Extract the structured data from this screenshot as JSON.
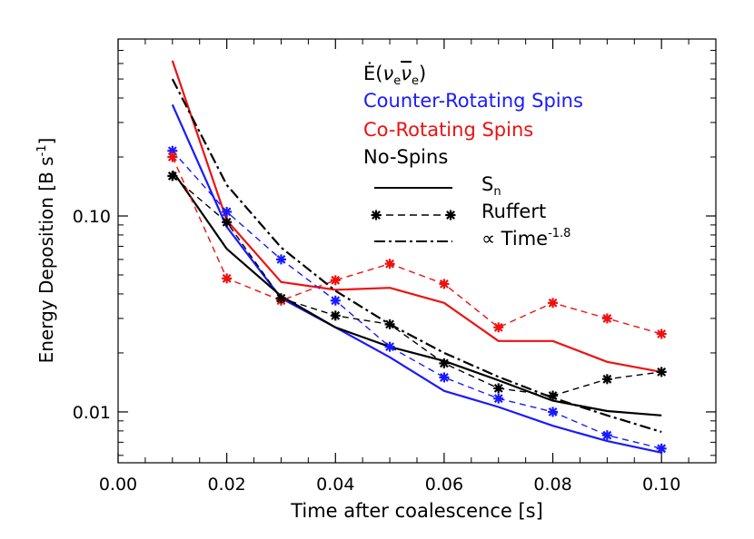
{
  "chart_data": {
    "type": "line",
    "xlabel": "Time after coalescence [s]",
    "ylabel": "Energy Deposition [B s",
    "ylabel_sup": "-1",
    "ylabel_close": "]",
    "yscale": "log",
    "xlim": [
      0.0,
      0.11
    ],
    "ylim": [
      0.0055,
      0.8
    ],
    "x_ticks": [
      {
        "value": 0.0,
        "label": "0.00"
      },
      {
        "value": 0.02,
        "label": "0.02"
      },
      {
        "value": 0.04,
        "label": "0.04"
      },
      {
        "value": 0.06,
        "label": "0.06"
      },
      {
        "value": 0.08,
        "label": "0.08"
      },
      {
        "value": 0.1,
        "label": "0.10"
      }
    ],
    "y_ticks": [
      {
        "value": 0.01,
        "label": "0.01"
      },
      {
        "value": 0.1,
        "label": "0.10"
      }
    ],
    "legend": {
      "header_prefix": "Ė(",
      "nu": "ν",
      "sub_e": "e",
      "nubar": "ν",
      "header_suffix": ")",
      "spin_entries": [
        {
          "label": "Counter-Rotating Spins",
          "color": "#1a1aff"
        },
        {
          "label": "Co-Rotating Spins",
          "color": "#ee1111"
        },
        {
          "label": "No-Spins",
          "color": "#000000"
        }
      ],
      "style_entries": [
        {
          "style": "solid",
          "label": "S",
          "sub": "n",
          "sup": ""
        },
        {
          "style": "dashed-star",
          "label": "Ruffert",
          "sub": "",
          "sup": ""
        },
        {
          "style": "dashdot",
          "label": "∝ Time",
          "sub": "",
          "sup": "-1.8"
        }
      ]
    },
    "series": [
      {
        "name": "Counter-Rotating Spins S_n",
        "color": "#1a1aff",
        "style": "solid",
        "x": [
          0.01,
          0.02,
          0.03,
          0.04,
          0.05,
          0.06,
          0.07,
          0.08,
          0.09,
          0.1
        ],
        "y": [
          0.37,
          0.088,
          0.038,
          0.027,
          0.019,
          0.0128,
          0.0106,
          0.0085,
          0.0071,
          0.0062
        ]
      },
      {
        "name": "Co-Rotating Spins S_n",
        "color": "#ee1111",
        "style": "solid",
        "x": [
          0.01,
          0.02,
          0.03,
          0.04,
          0.05,
          0.06,
          0.07,
          0.08,
          0.09,
          0.1
        ],
        "y": [
          0.62,
          0.095,
          0.046,
          0.042,
          0.043,
          0.036,
          0.023,
          0.023,
          0.018,
          0.016
        ]
      },
      {
        "name": "No-Spins S_n",
        "color": "#000000",
        "style": "solid",
        "x": [
          0.01,
          0.02,
          0.03,
          0.04,
          0.05,
          0.06,
          0.07,
          0.08,
          0.09,
          0.1
        ],
        "y": [
          0.17,
          0.068,
          0.039,
          0.027,
          0.0215,
          0.0182,
          0.0145,
          0.0114,
          0.0101,
          0.0096
        ]
      },
      {
        "name": "Counter-Rotating Spins Ruffert",
        "color": "#1a1aff",
        "style": "dashed-star",
        "x": [
          0.01,
          0.02,
          0.03,
          0.04,
          0.05,
          0.06,
          0.07,
          0.08,
          0.09,
          0.1
        ],
        "y": [
          0.215,
          0.105,
          0.06,
          0.037,
          0.0215,
          0.015,
          0.0117,
          0.01,
          0.0076,
          0.0065
        ]
      },
      {
        "name": "Co-Rotating Spins Ruffert",
        "color": "#ee1111",
        "style": "dashed-star",
        "x": [
          0.01,
          0.02,
          0.03,
          0.04,
          0.05,
          0.06,
          0.07,
          0.08,
          0.09,
          0.1
        ],
        "y": [
          0.2,
          0.048,
          0.037,
          0.047,
          0.057,
          0.045,
          0.027,
          0.036,
          0.03,
          0.025
        ]
      },
      {
        "name": "No-Spins Ruffert",
        "color": "#000000",
        "style": "dashed-star",
        "x": [
          0.01,
          0.02,
          0.03,
          0.04,
          0.05,
          0.06,
          0.07,
          0.08,
          0.09,
          0.1
        ],
        "y": [
          0.16,
          0.093,
          0.038,
          0.031,
          0.028,
          0.0177,
          0.0132,
          0.0121,
          0.0147,
          0.016
        ]
      },
      {
        "name": "Time^-1.8 power law",
        "color": "#000000",
        "style": "dashdot",
        "x": [
          0.01,
          0.02,
          0.03,
          0.04,
          0.05,
          0.06,
          0.07,
          0.08,
          0.09,
          0.1
        ],
        "y": [
          0.5,
          0.144,
          0.069,
          0.0415,
          0.028,
          0.02,
          0.0151,
          0.0118,
          0.0096,
          0.0079
        ]
      }
    ]
  }
}
